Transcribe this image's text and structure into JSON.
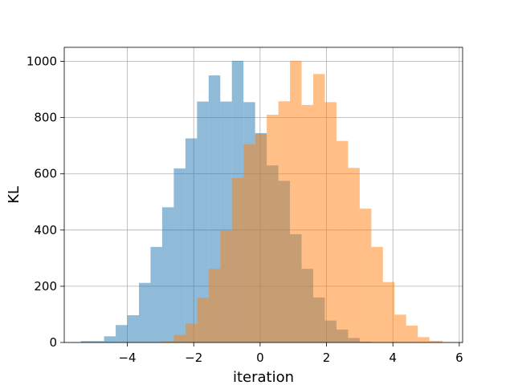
{
  "chart_data": {
    "type": "histogram",
    "title": "",
    "xlabel": "iteration",
    "ylabel": "KL",
    "xlim": [
      -5.9,
      6.1
    ],
    "ylim": [
      0,
      1050
    ],
    "xticks": [
      -4,
      -2,
      0,
      2,
      4,
      6
    ],
    "yticks": [
      0,
      200,
      400,
      600,
      800,
      1000
    ],
    "xtick_labels": [
      "−4",
      "−2",
      "0",
      "2",
      "4",
      "6"
    ],
    "ytick_labels": [
      "0",
      "200",
      "400",
      "600",
      "800",
      "1000"
    ],
    "grid": true,
    "legend": "none",
    "series": [
      {
        "color": "#1f77b4",
        "alpha": 0.5,
        "bins": [
          [
            -5.4,
            -4.7,
            5
          ],
          [
            -4.7,
            -4.35,
            22
          ],
          [
            -4.35,
            -4.0,
            62
          ],
          [
            -4.0,
            -3.65,
            97
          ],
          [
            -3.65,
            -3.3,
            212
          ],
          [
            -3.3,
            -2.95,
            340
          ],
          [
            -2.95,
            -2.6,
            481
          ],
          [
            -2.6,
            -2.25,
            619
          ],
          [
            -2.25,
            -1.9,
            726
          ],
          [
            -1.9,
            -1.55,
            857
          ],
          [
            -1.55,
            -1.2,
            950
          ],
          [
            -1.2,
            -0.85,
            857
          ],
          [
            -0.85,
            -0.5,
            1002
          ],
          [
            -0.5,
            -0.15,
            855
          ],
          [
            -0.15,
            0.2,
            745
          ],
          [
            0.2,
            0.55,
            630
          ],
          [
            0.55,
            0.9,
            575
          ],
          [
            0.9,
            1.25,
            385
          ],
          [
            1.25,
            1.6,
            262
          ],
          [
            1.6,
            1.95,
            160
          ],
          [
            1.95,
            2.3,
            78
          ],
          [
            2.3,
            2.65,
            46
          ],
          [
            2.65,
            3.0,
            16
          ],
          [
            3.0,
            3.35,
            3
          ]
        ]
      },
      {
        "color": "#ff7f0e",
        "alpha": 0.5,
        "bins": [
          [
            -3.0,
            -2.6,
            4
          ],
          [
            -2.6,
            -2.25,
            27
          ],
          [
            -2.25,
            -1.9,
            67
          ],
          [
            -1.9,
            -1.55,
            159
          ],
          [
            -1.55,
            -1.2,
            262
          ],
          [
            -1.2,
            -0.85,
            398
          ],
          [
            -0.85,
            -0.5,
            585
          ],
          [
            -0.5,
            -0.15,
            705
          ],
          [
            -0.15,
            0.2,
            742
          ],
          [
            0.2,
            0.55,
            810
          ],
          [
            0.55,
            0.9,
            858
          ],
          [
            0.9,
            1.25,
            1002
          ],
          [
            1.25,
            1.6,
            845
          ],
          [
            1.6,
            1.95,
            955
          ],
          [
            1.95,
            2.3,
            855
          ],
          [
            2.3,
            2.65,
            717
          ],
          [
            2.65,
            3.0,
            621
          ],
          [
            3.0,
            3.35,
            476
          ],
          [
            3.35,
            3.7,
            340
          ],
          [
            3.7,
            4.05,
            215
          ],
          [
            4.05,
            4.4,
            99
          ],
          [
            4.4,
            4.75,
            60
          ],
          [
            4.75,
            5.1,
            19
          ],
          [
            5.1,
            5.5,
            6
          ]
        ]
      }
    ]
  }
}
